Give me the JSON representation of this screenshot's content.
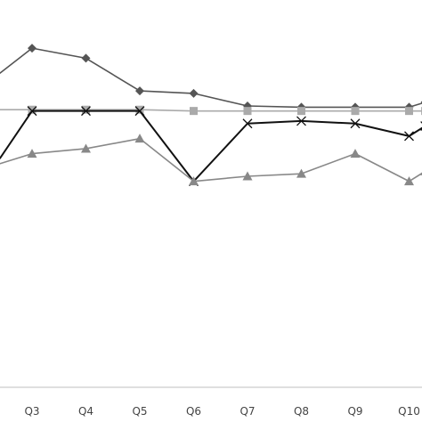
{
  "chart_data": {
    "type": "line",
    "categories": [
      "Q3",
      "Q4",
      "Q5",
      "Q6",
      "Q7",
      "Q8",
      "Q9",
      "Q10"
    ],
    "tick_labels": [
      "Q3",
      "Q4",
      "Q5",
      "Q6",
      "Q7",
      "Q8",
      "Q9",
      "Q10"
    ],
    "x": [
      3,
      4,
      5,
      6,
      7,
      8,
      9,
      10,
      10.3
    ],
    "series": [
      {
        "marker": "diamond",
        "color": "#555555",
        "x": [
          2.4,
          3,
          4,
          5,
          6,
          7,
          8,
          9,
          10,
          10.3
        ],
        "values": [
          8.5,
          9.5,
          9.1,
          7.8,
          7.7,
          7.2,
          7.15,
          7.15,
          7.15,
          7.35
        ]
      },
      {
        "marker": "square",
        "color": "#aaaaaa",
        "x": [
          2.4,
          3,
          4,
          5,
          6,
          7,
          8,
          9,
          10,
          10.3
        ],
        "values": [
          7.05,
          7.05,
          7.05,
          7.05,
          7.0,
          7.0,
          7.0,
          7.0,
          7.0,
          7.0
        ]
      },
      {
        "marker": "x",
        "color": "#111111",
        "x": [
          2.4,
          3,
          4,
          5,
          6,
          7,
          8,
          9,
          10,
          10.3
        ],
        "values": [
          5.1,
          7.0,
          7.0,
          7.0,
          4.2,
          6.5,
          6.6,
          6.5,
          6.0,
          6.4
        ]
      },
      {
        "marker": "triangle",
        "color": "#888888",
        "x": [
          2.4,
          3,
          4,
          5,
          6,
          7,
          8,
          9,
          10,
          10.3
        ],
        "values": [
          4.9,
          5.3,
          5.5,
          5.9,
          4.2,
          4.4,
          4.5,
          5.3,
          4.2,
          4.6
        ]
      }
    ],
    "xlim": [
      2.4,
      10.3
    ],
    "ylim": [
      -4,
      10
    ],
    "grid": false,
    "legend": "none",
    "colors": {
      "axis": "#bfbfbf",
      "tick_label": "#444444"
    }
  }
}
